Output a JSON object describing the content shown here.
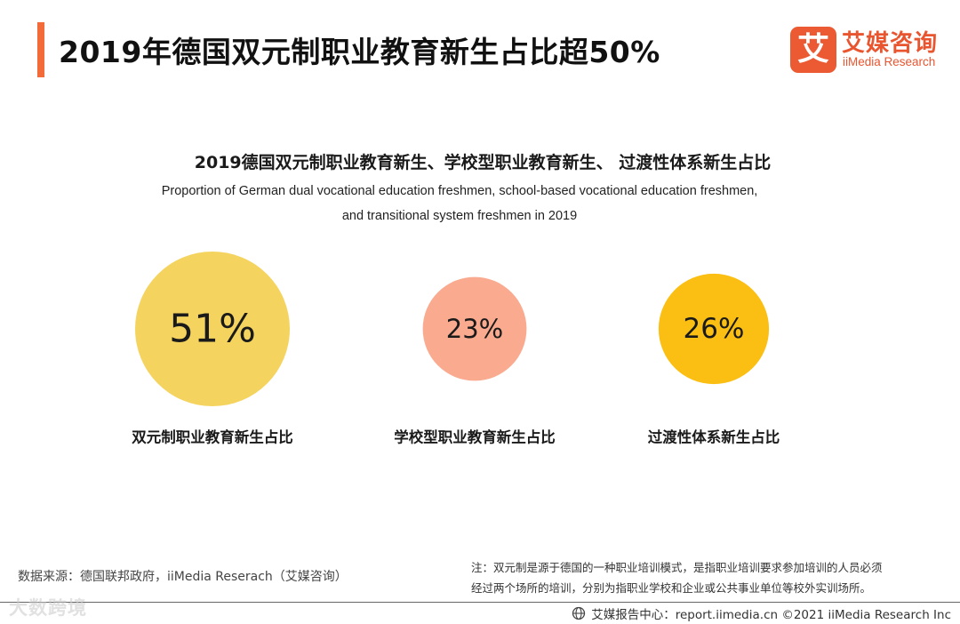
{
  "header": {
    "title": "2019年德国双元制职业教育新生占比超50%",
    "accent_color": "#f26b38"
  },
  "logo": {
    "mark": "艾",
    "name_cn": "艾媒咨询",
    "name_en": "iiMedia Research"
  },
  "chart_data": {
    "type": "bubble",
    "title": "2019德国双元制职业教育新生、学校型职业教育新生、 过渡性体系新生占比",
    "subtitle_lines": [
      "Proportion of German dual vocational education freshmen, school-based vocational education freshmen,",
      "and transitional system freshmen in 2019"
    ],
    "categories": [
      "双元制职业教育新生占比",
      "学校型职业教育新生占比",
      "过渡性体系新生占比"
    ],
    "values": [
      51,
      23,
      26
    ],
    "value_labels": [
      "51%",
      "23%",
      "26%"
    ],
    "colors": [
      "#f4d35e",
      "#f9aa8f",
      "#fbbf14"
    ]
  },
  "footer": {
    "source": "数据来源：德国联邦政府，iiMedia Reserach（艾媒咨询）",
    "note_lines": [
      "注：双元制是源于德国的一种职业培训模式，是指职业培训要求参加培训的人员必须",
      "经过两个场所的培训，分别为指职业学校和企业或公共事业单位等校外实训场所。"
    ],
    "copyright": "艾媒报告中心：report.iimedia.cn  ©2021  iiMedia Research  Inc"
  },
  "watermark": "大数跨境"
}
